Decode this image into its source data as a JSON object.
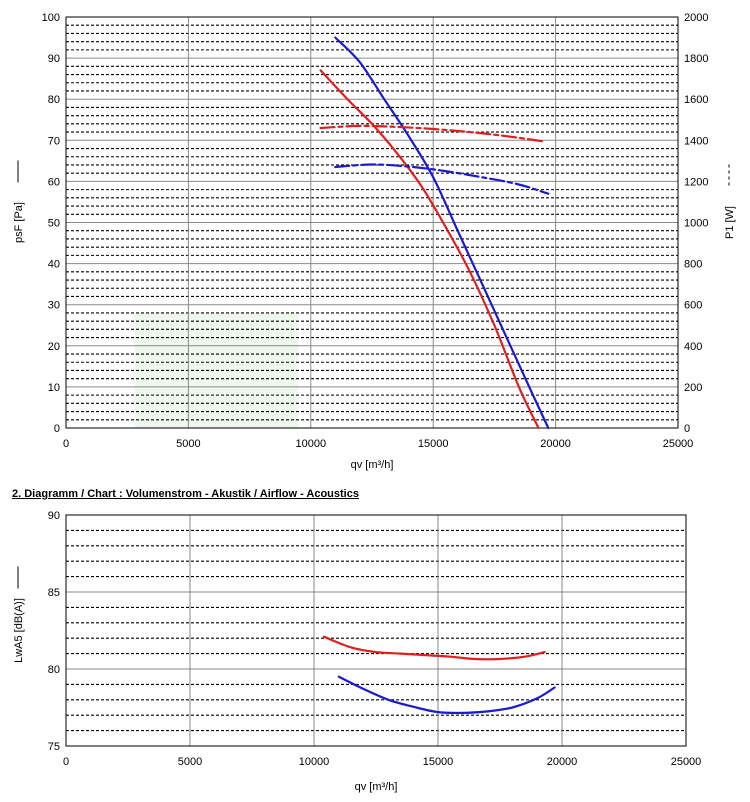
{
  "chart_data": [
    {
      "type": "line",
      "title": "",
      "xlabel": "qv [m³/h]",
      "ylabel_left": "psF [Pa]",
      "ylabel_right": "P1 [W]",
      "xlim": [
        0,
        25000
      ],
      "ylim_left": [
        0,
        100
      ],
      "ylim_right": [
        0,
        2000
      ],
      "x_ticks": [
        "0",
        "5000",
        "10000",
        "15000",
        "20000",
        "25000"
      ],
      "y_ticks_left": [
        "0",
        "10",
        "20",
        "30",
        "40",
        "50",
        "60",
        "70",
        "80",
        "90",
        "100"
      ],
      "y_ticks_right": [
        "0",
        "200",
        "400",
        "600",
        "800",
        "1000",
        "1200",
        "1400",
        "1600",
        "1800",
        "2000"
      ],
      "grid": true,
      "series": [
        {
          "axis": "left",
          "color": "#e02020",
          "style": "solid",
          "x": [
            10400,
            11500,
            12500,
            13500,
            14500,
            15500,
            16500,
            17500,
            18500,
            19300
          ],
          "y": [
            87,
            80,
            74,
            67,
            59,
            49,
            38,
            25,
            10,
            0
          ]
        },
        {
          "axis": "left",
          "color": "#1a1ad0",
          "style": "solid",
          "x": [
            11000,
            12000,
            13000,
            14000,
            15000,
            16000,
            17000,
            18000,
            19000,
            19700
          ],
          "y": [
            95,
            89,
            80,
            71,
            61,
            48,
            35,
            22,
            9,
            0
          ]
        },
        {
          "axis": "right",
          "color": "#e02020",
          "style": "dashed",
          "x": [
            10400,
            12000,
            13500,
            15000,
            16500,
            18000,
            19500
          ],
          "y": [
            1460,
            1470,
            1465,
            1455,
            1440,
            1420,
            1395
          ]
        },
        {
          "axis": "right",
          "color": "#1a1ad0",
          "style": "dashed",
          "x": [
            11000,
            12500,
            14000,
            15500,
            17000,
            18500,
            19700
          ],
          "y": [
            1270,
            1282,
            1272,
            1250,
            1220,
            1185,
            1140
          ]
        }
      ]
    },
    {
      "type": "line",
      "title": "2. Diagramm / Chart :   Volumenstrom - Akustik / Airflow - Acoustics",
      "xlabel": "qv [m³/h]",
      "ylabel": "LwA5 [dB(A)]",
      "xlim": [
        0,
        25000
      ],
      "ylim": [
        75,
        90
      ],
      "x_ticks": [
        "0",
        "5000",
        "10000",
        "15000",
        "20000",
        "25000"
      ],
      "y_ticks": [
        "75",
        "80",
        "85",
        "90"
      ],
      "grid": true,
      "series": [
        {
          "color": "#e02020",
          "style": "solid",
          "x": [
            10400,
            11500,
            12500,
            13500,
            14500,
            15500,
            16500,
            17500,
            18500,
            19300
          ],
          "y": [
            82.1,
            81.4,
            81.1,
            81.0,
            80.9,
            80.8,
            80.65,
            80.65,
            80.8,
            81.1
          ]
        },
        {
          "color": "#1a1ad0",
          "style": "solid",
          "x": [
            11000,
            12000,
            13000,
            14000,
            15000,
            16000,
            17000,
            18000,
            19000,
            19700
          ],
          "y": [
            79.5,
            78.7,
            78.0,
            77.55,
            77.2,
            77.15,
            77.25,
            77.5,
            78.1,
            78.8
          ]
        }
      ]
    }
  ]
}
